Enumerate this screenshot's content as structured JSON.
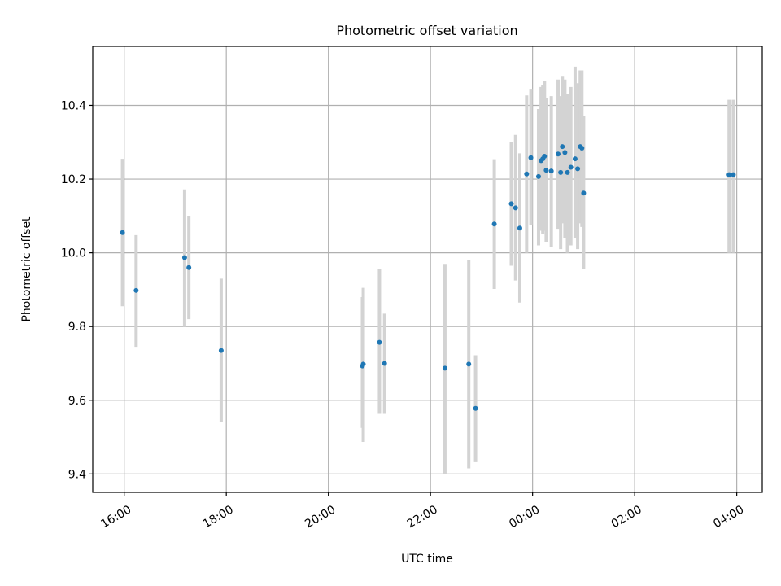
{
  "chart_data": {
    "type": "scatter",
    "title": "Photometric offset variation",
    "xlabel": "UTC time",
    "ylabel": "Photometric offset",
    "x_range": [
      "15:23",
      "04:30"
    ],
    "ylim": [
      9.35,
      10.56
    ],
    "x_ticks": [
      "16:00",
      "18:00",
      "20:00",
      "22:00",
      "00:00",
      "02:00",
      "04:00"
    ],
    "y_ticks": [
      "9.4",
      "9.6",
      "9.8",
      "10.0",
      "10.2",
      "10.4"
    ],
    "grid": true,
    "marker_color": "#1f77b4",
    "errorbar_color": "#d3d3d3",
    "points": [
      {
        "t": "15:58",
        "y": 10.055,
        "lo": 9.855,
        "hi": 10.255
      },
      {
        "t": "16:14",
        "y": 9.898,
        "lo": 9.745,
        "hi": 10.048
      },
      {
        "t": "17:11",
        "y": 9.987,
        "lo": 9.8,
        "hi": 10.172
      },
      {
        "t": "17:16",
        "y": 9.96,
        "lo": 9.82,
        "hi": 10.1
      },
      {
        "t": "17:54",
        "y": 9.735,
        "lo": 9.541,
        "hi": 9.93
      },
      {
        "t": "20:40",
        "y": 9.693,
        "lo": 9.525,
        "hi": 9.88
      },
      {
        "t": "20:41",
        "y": 9.698,
        "lo": 9.487,
        "hi": 9.905
      },
      {
        "t": "21:00",
        "y": 9.757,
        "lo": 9.563,
        "hi": 9.955
      },
      {
        "t": "21:06",
        "y": 9.7,
        "lo": 9.563,
        "hi": 9.835
      },
      {
        "t": "22:17",
        "y": 9.687,
        "lo": 9.4,
        "hi": 9.97
      },
      {
        "t": "22:45",
        "y": 9.698,
        "lo": 9.415,
        "hi": 9.98
      },
      {
        "t": "22:53",
        "y": 9.578,
        "lo": 9.432,
        "hi": 9.722
      },
      {
        "t": "23:15",
        "y": 10.078,
        "lo": 9.902,
        "hi": 10.254
      },
      {
        "t": "23:35",
        "y": 10.133,
        "lo": 9.965,
        "hi": 10.3
      },
      {
        "t": "23:40",
        "y": 10.122,
        "lo": 9.925,
        "hi": 10.32
      },
      {
        "t": "23:45",
        "y": 10.067,
        "lo": 9.865,
        "hi": 10.27
      },
      {
        "t": "23:53",
        "y": 10.214,
        "lo": 10.0,
        "hi": 10.427
      },
      {
        "t": "23:58",
        "y": 10.258,
        "lo": 10.075,
        "hi": 10.445
      },
      {
        "t": "00:07",
        "y": 10.207,
        "lo": 10.02,
        "hi": 10.39
      },
      {
        "t": "00:10",
        "y": 10.25,
        "lo": 10.06,
        "hi": 10.45
      },
      {
        "t": "00:12",
        "y": 10.255,
        "lo": 10.05,
        "hi": 10.455
      },
      {
        "t": "00:14",
        "y": 10.262,
        "lo": 10.06,
        "hi": 10.465
      },
      {
        "t": "00:16",
        "y": 10.224,
        "lo": 10.03,
        "hi": 10.42
      },
      {
        "t": "00:22",
        "y": 10.222,
        "lo": 10.015,
        "hi": 10.425
      },
      {
        "t": "00:30",
        "y": 10.268,
        "lo": 10.065,
        "hi": 10.47
      },
      {
        "t": "00:33",
        "y": 10.218,
        "lo": 10.01,
        "hi": 10.425
      },
      {
        "t": "00:35",
        "y": 10.288,
        "lo": 10.08,
        "hi": 10.48
      },
      {
        "t": "00:38",
        "y": 10.272,
        "lo": 10.04,
        "hi": 10.47
      },
      {
        "t": "00:41",
        "y": 10.218,
        "lo": 10.0,
        "hi": 10.43
      },
      {
        "t": "00:45",
        "y": 10.232,
        "lo": 10.02,
        "hi": 10.45
      },
      {
        "t": "00:50",
        "y": 10.255,
        "lo": 10.04,
        "hi": 10.505
      },
      {
        "t": "00:53",
        "y": 10.228,
        "lo": 10.01,
        "hi": 10.46
      },
      {
        "t": "00:56",
        "y": 10.288,
        "lo": 10.08,
        "hi": 10.495
      },
      {
        "t": "00:58",
        "y": 10.284,
        "lo": 10.07,
        "hi": 10.495
      },
      {
        "t": "01:00",
        "y": 10.162,
        "lo": 9.955,
        "hi": 10.37
      },
      {
        "t": "03:51",
        "y": 10.212,
        "lo": 10.0,
        "hi": 10.415
      },
      {
        "t": "03:56",
        "y": 10.212,
        "lo": 10.0,
        "hi": 10.415
      }
    ]
  }
}
